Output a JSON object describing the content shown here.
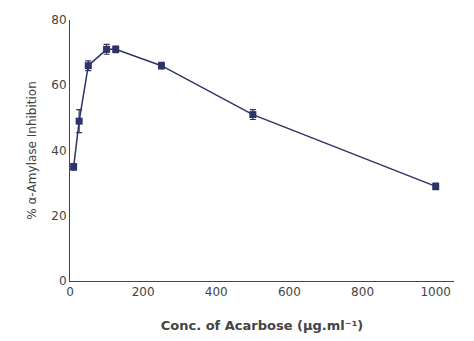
{
  "chart_data": {
    "type": "line",
    "xlabel": "Conc. of Acarbose (μg.ml⁻¹)",
    "ylabel": "% α-Amylase Inhibition",
    "x": [
      10,
      25,
      50,
      100,
      125,
      250,
      500,
      1000
    ],
    "values": [
      35,
      49,
      66,
      71,
      71,
      66,
      51,
      29
    ],
    "yerr": [
      1.0,
      3.5,
      1.5,
      1.5,
      1.0,
      1.0,
      1.5,
      1.0
    ],
    "color": "#2e3466",
    "marker": "square",
    "line_style": "solid",
    "xlim": [
      0,
      1050
    ],
    "ylim": [
      0,
      80
    ],
    "xticks": [
      0,
      200,
      400,
      600,
      800,
      1000
    ],
    "yticks": [
      0,
      20,
      40,
      60,
      80
    ],
    "grid": false
  }
}
